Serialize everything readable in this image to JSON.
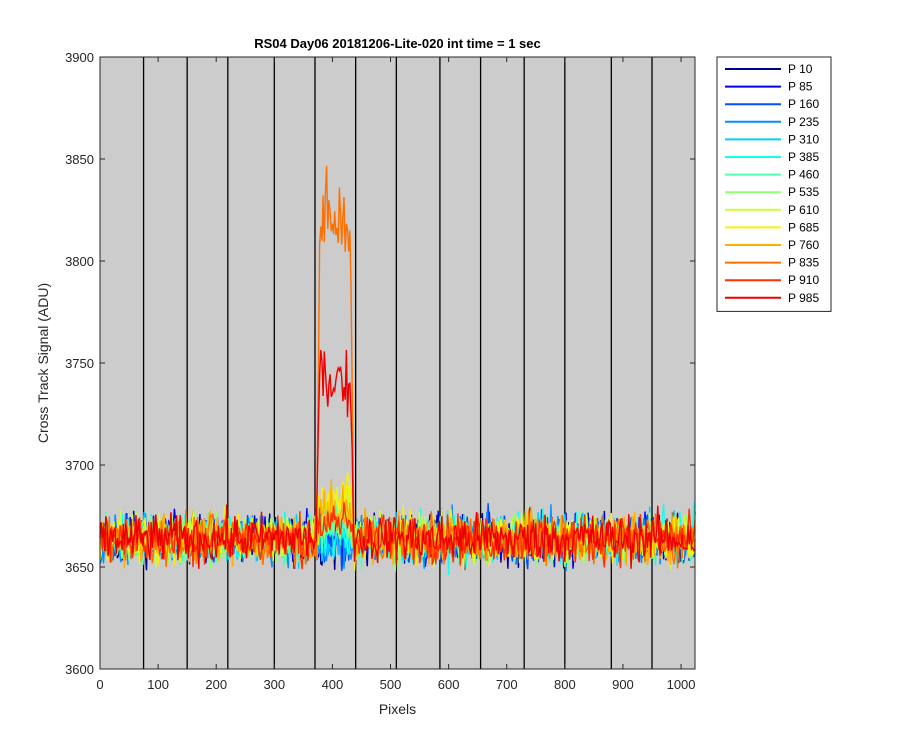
{
  "chart_data": {
    "type": "line",
    "title": "RS04 Day06 20181206-Lite-020 int time = 1 sec",
    "xlabel": "Pixels",
    "ylabel": "Cross Track Signal (ADU)",
    "xlim": [
      0,
      1024
    ],
    "ylim": [
      3600,
      3900
    ],
    "xticks": [
      0,
      100,
      200,
      300,
      400,
      500,
      600,
      700,
      800,
      900,
      1000
    ],
    "yticks": [
      3600,
      3650,
      3700,
      3750,
      3800,
      3850,
      3900
    ],
    "background": "#cccccc",
    "vertical_lines_x": [
      75,
      150,
      220,
      300,
      370,
      440,
      510,
      585,
      655,
      730,
      800,
      880,
      950
    ],
    "legend_position": "outside-right",
    "series": [
      {
        "name": "P 10",
        "color": "#00008f",
        "baseline": 3664,
        "bump": 0
      },
      {
        "name": "P 85",
        "color": "#0000ef",
        "baseline": 3664,
        "bump": -2
      },
      {
        "name": "P 160",
        "color": "#0050ff",
        "baseline": 3664,
        "bump": -4
      },
      {
        "name": "P 235",
        "color": "#0090ff",
        "baseline": 3664,
        "bump": -6
      },
      {
        "name": "P 310",
        "color": "#00cfff",
        "baseline": 3664,
        "bump": -3
      },
      {
        "name": "P 385",
        "color": "#10ffef",
        "baseline": 3664,
        "bump": 2
      },
      {
        "name": "P 460",
        "color": "#50ffaf",
        "baseline": 3664,
        "bump": 4
      },
      {
        "name": "P 535",
        "color": "#8fff70",
        "baseline": 3664,
        "bump": 8
      },
      {
        "name": "P 610",
        "color": "#cfff30",
        "baseline": 3664,
        "bump": 16
      },
      {
        "name": "P 685",
        "color": "#ffef00",
        "baseline": 3664,
        "bump": 22
      },
      {
        "name": "P 760",
        "color": "#ffaf00",
        "baseline": 3664,
        "bump": 14
      },
      {
        "name": "P 835",
        "color": "#ff7000",
        "baseline": 3664,
        "bump": 154
      },
      {
        "name": "P 910",
        "color": "#ff3000",
        "baseline": 3664,
        "bump": 8
      },
      {
        "name": "P 985",
        "color": "#ef0000",
        "baseline": 3664,
        "bump": 78
      }
    ],
    "bump_range": [
      372,
      437
    ]
  }
}
